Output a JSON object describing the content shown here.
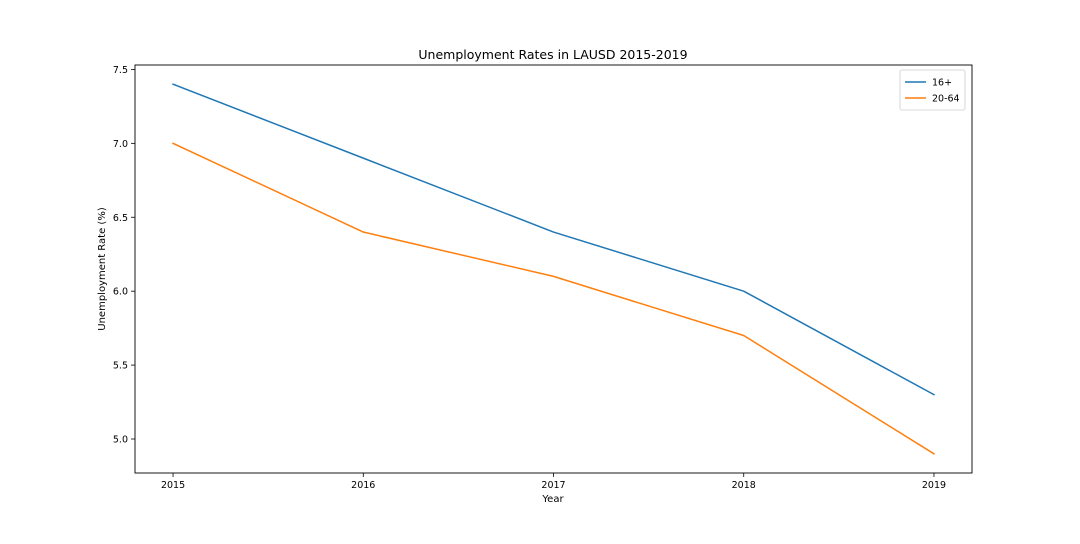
{
  "chart_data": {
    "type": "line",
    "title": "Unemployment Rates in LAUSD 2015-2019",
    "xlabel": "Year",
    "ylabel": "Unemployment Rate (%)",
    "x": [
      2015,
      2016,
      2017,
      2018,
      2019
    ],
    "xticks": [
      "2015",
      "2016",
      "2017",
      "2018",
      "2019"
    ],
    "yticks": [
      "5.0",
      "5.5",
      "6.0",
      "6.5",
      "7.0",
      "7.5"
    ],
    "xlim": [
      2014.8,
      2019.2
    ],
    "ylim": [
      4.77,
      7.53
    ],
    "grid": false,
    "legend_position": "top-right",
    "series": [
      {
        "name": "16+",
        "color": "#1f77b4",
        "values": [
          7.4,
          6.9,
          6.4,
          6.0,
          5.3
        ]
      },
      {
        "name": "20-64",
        "color": "#ff7f0e",
        "values": [
          7.0,
          6.4,
          6.1,
          5.7,
          4.9
        ]
      }
    ]
  }
}
